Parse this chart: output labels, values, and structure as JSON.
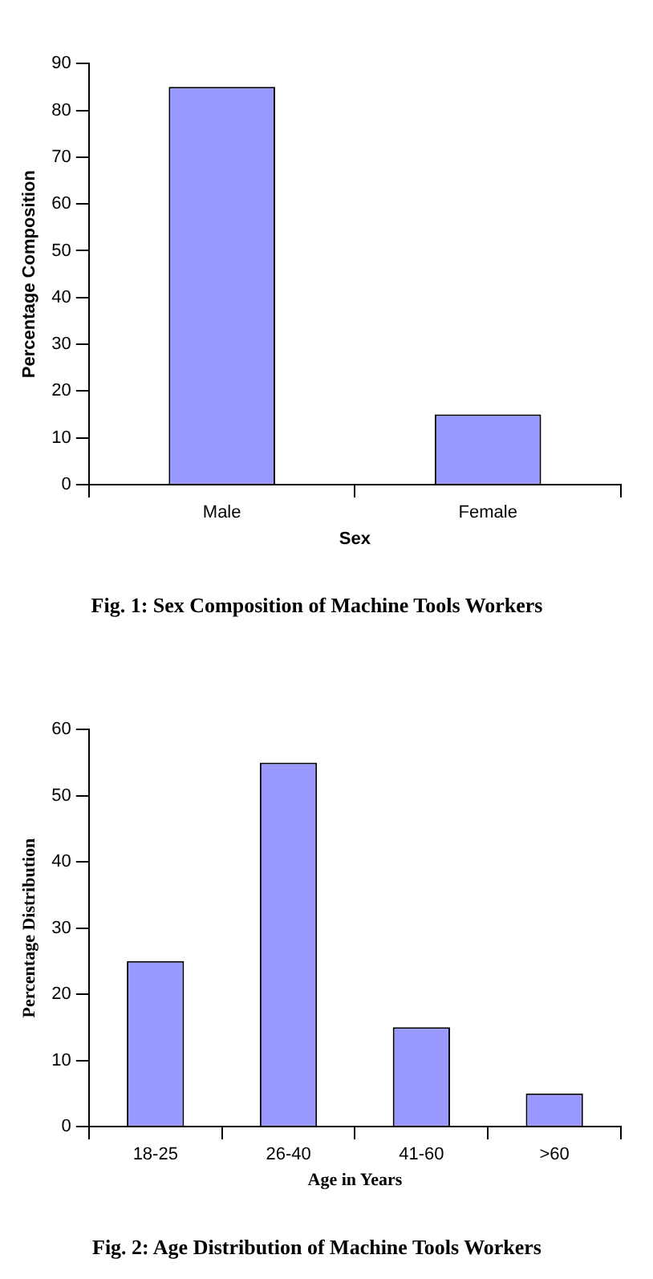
{
  "chart_data": [
    {
      "type": "bar",
      "title": "Fig. 1: Sex Composition of Machine Tools Workers",
      "xlabel": "Sex",
      "ylabel": "Percentage Composition",
      "categories": [
        "Male",
        "Female"
      ],
      "values": [
        85,
        15
      ],
      "color": "#9999ff",
      "ylim": [
        0,
        90
      ],
      "yticks": [
        0,
        10,
        20,
        30,
        40,
        50,
        60,
        70,
        80,
        90
      ],
      "grid": false
    },
    {
      "type": "bar",
      "title": "Fig. 2: Age Distribution of Machine Tools Workers",
      "xlabel": "Age in Years",
      "ylabel": "Percentage Distribution",
      "categories": [
        "18-25",
        "26-40",
        "41-60",
        ">60"
      ],
      "values": [
        25,
        55,
        15,
        5
      ],
      "color": "#9999ff",
      "ylim": [
        0,
        60
      ],
      "yticks": [
        0,
        10,
        20,
        30,
        40,
        50,
        60
      ],
      "grid": false
    }
  ]
}
